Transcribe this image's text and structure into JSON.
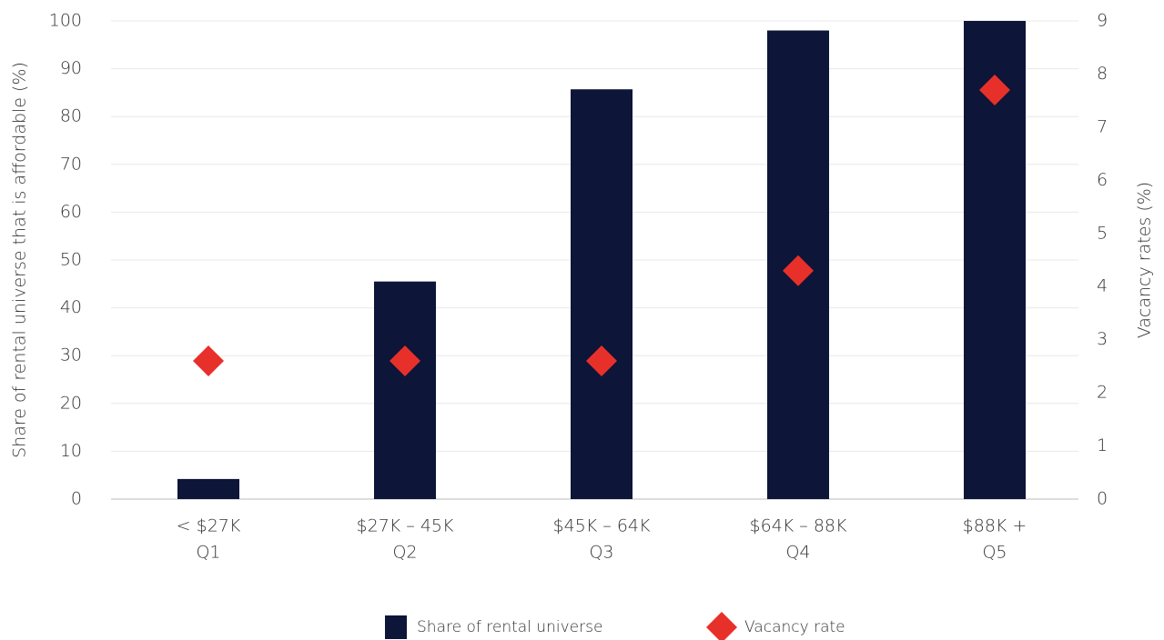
{
  "chart_data": {
    "type": "bar",
    "categories": [
      [
        "< $27K",
        "Q1"
      ],
      [
        "$27K – 45K",
        "Q2"
      ],
      [
        "$45K – 64K",
        "Q3"
      ],
      [
        "$64K – 88K",
        "Q4"
      ],
      [
        "$88K +",
        "Q5"
      ]
    ],
    "series": [
      {
        "name": "Share of rental universe",
        "type": "bar",
        "color": "#0d1538",
        "values": [
          4.2,
          45.5,
          85.7,
          98,
          100
        ]
      },
      {
        "name": "Vacancy rate",
        "type": "scatter",
        "axis": "y2",
        "color": "#e8302a",
        "values": [
          2.6,
          2.6,
          2.6,
          4.3,
          7.7
        ]
      }
    ],
    "y_label": "Share of rental universe that is affordable (%)",
    "y2_label": "Vacancy rates (%)",
    "ylim": [
      0,
      100
    ],
    "yticks": [
      0,
      10,
      20,
      30,
      40,
      50,
      60,
      70,
      80,
      90,
      100
    ],
    "y2lim": [
      0,
      9
    ],
    "y2ticks": [
      0,
      1,
      2,
      3,
      4,
      5,
      6,
      7,
      8,
      9
    ],
    "grid": true,
    "legend": "bottom"
  }
}
